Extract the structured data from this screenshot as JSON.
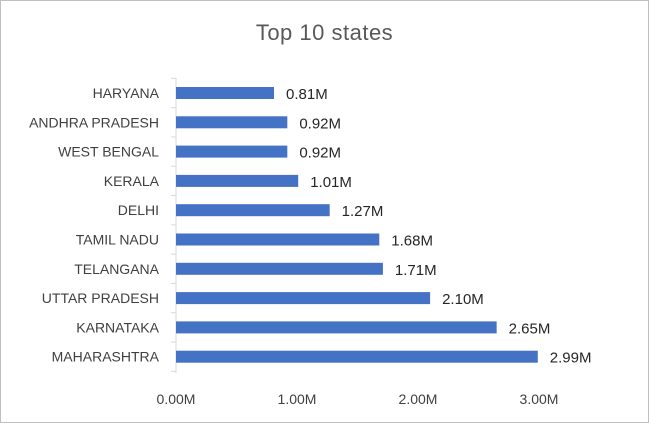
{
  "chart_data": {
    "type": "bar",
    "orientation": "horizontal",
    "title": "Top 10 states",
    "xlabel": "",
    "ylabel": "",
    "categories": [
      "HARYANA",
      "ANDHRA PRADESH",
      "WEST BENGAL",
      "KERALA",
      "DELHI",
      "TAMIL NADU",
      "TELANGANA",
      "UTTAR PRADESH",
      "KARNATAKA",
      "MAHARASHTRA"
    ],
    "values": [
      0.81,
      0.92,
      0.92,
      1.01,
      1.27,
      1.68,
      1.71,
      2.1,
      2.65,
      2.99
    ],
    "data_labels": [
      "0.81M",
      "0.92M",
      "0.92M",
      "1.01M",
      "1.27M",
      "1.68M",
      "1.71M",
      "2.10M",
      "2.65M",
      "2.99M"
    ],
    "xlim": [
      0,
      3
    ],
    "x_ticks": [
      0,
      1,
      2,
      3
    ],
    "x_tick_labels": [
      "0.00M",
      "1.00M",
      "2.00M",
      "3.00M"
    ],
    "grid": false,
    "legend": "none",
    "bar_color": "#4472c4"
  }
}
